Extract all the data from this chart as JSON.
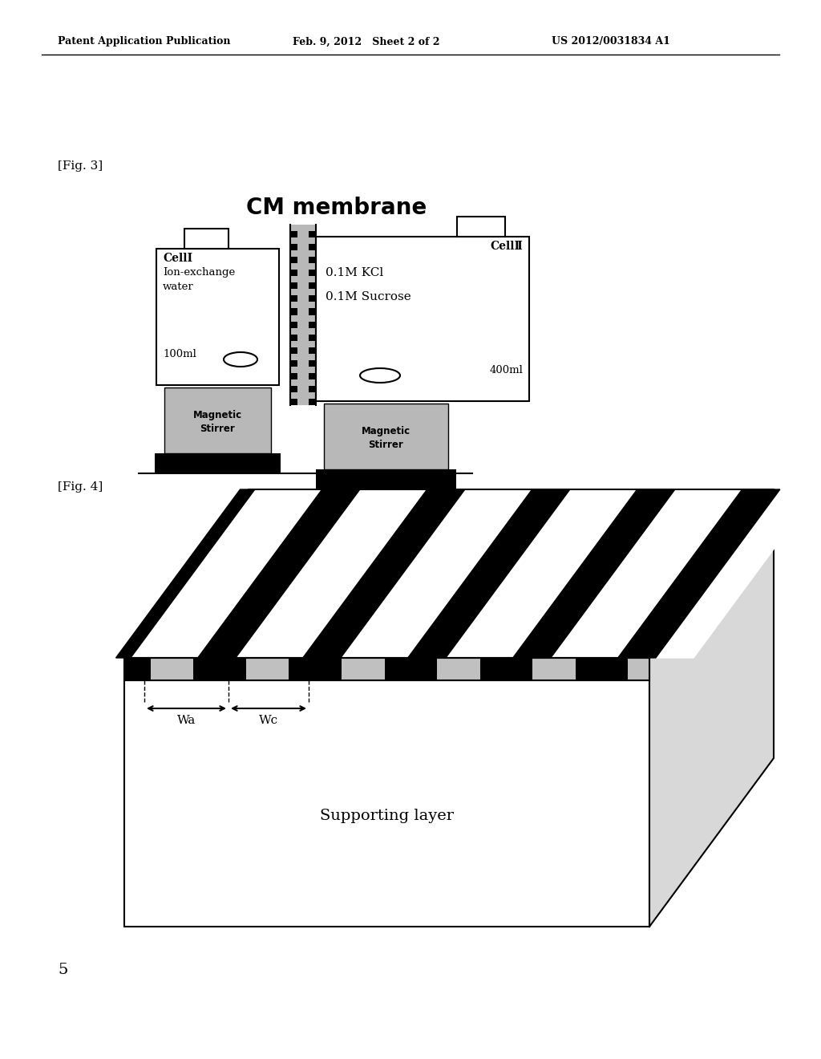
{
  "header_left": "Patent Application Publication",
  "header_mid": "Feb. 9, 2012   Sheet 2 of 2",
  "header_right": "US 2012/0031834 A1",
  "fig3_label": "[Fig. 3]",
  "fig3_title": "CM membrane",
  "fig4_label": "[Fig. 4]",
  "fig4_supporting_layer": "Supporting layer",
  "fig4_wa_label": "Wa",
  "fig4_wc_label": "Wc",
  "footer_num": "5",
  "bg_color": "#ffffff",
  "black": "#000000",
  "gray_light": "#c0c0c0",
  "gray_stipple": "#b8b8b8",
  "gray_side": "#d8d8d8"
}
